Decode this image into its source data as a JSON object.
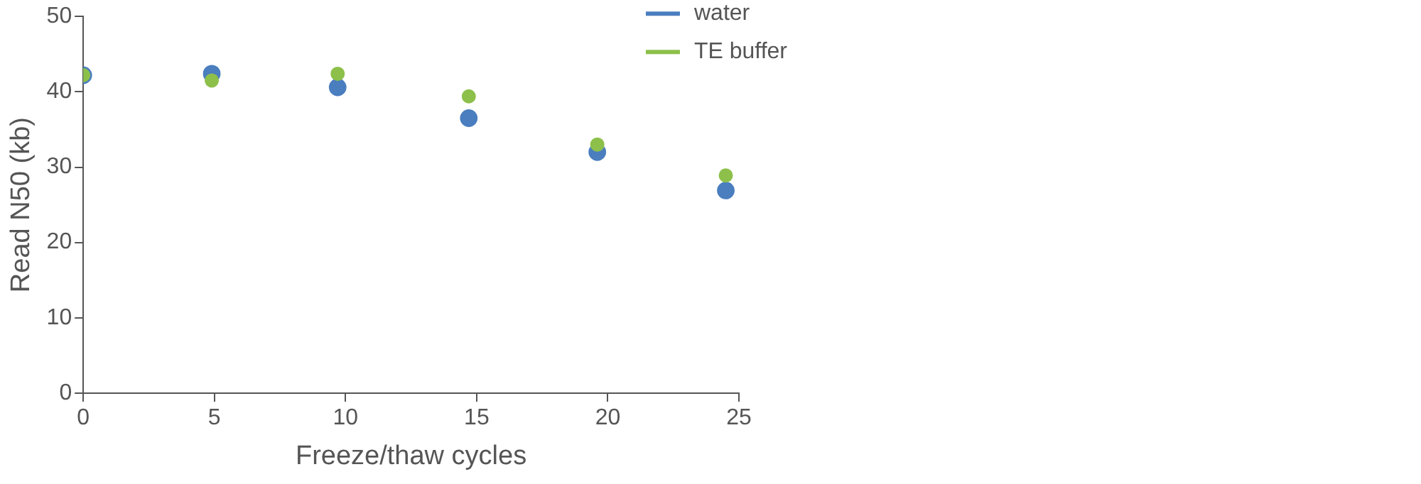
{
  "chart_data": {
    "type": "scatter",
    "xlabel": "Freeze/thaw cycles",
    "ylabel": "Read N50 (kb)",
    "xlim": [
      0,
      25
    ],
    "xticks": [
      0,
      5,
      10,
      15,
      20,
      25
    ],
    "ylim": [
      0,
      50
    ],
    "yticks": [
      0,
      10,
      20,
      30,
      40,
      50
    ],
    "grid": false,
    "legend": "top right",
    "marker": "circle",
    "series": [
      {
        "name": "water",
        "color": "#4a7ebf",
        "x": [
          0,
          4.9,
          9.7,
          14.7,
          19.6,
          24.5
        ],
        "values": [
          42.2,
          42.4,
          40.6,
          36.5,
          32.0,
          26.9
        ]
      },
      {
        "name": "TE buffer",
        "color": "#8dc04a",
        "x": [
          0,
          4.9,
          9.7,
          14.7,
          19.6,
          24.5
        ],
        "values": [
          42.2,
          41.5,
          42.4,
          39.4,
          33.0,
          28.9
        ]
      }
    ]
  }
}
